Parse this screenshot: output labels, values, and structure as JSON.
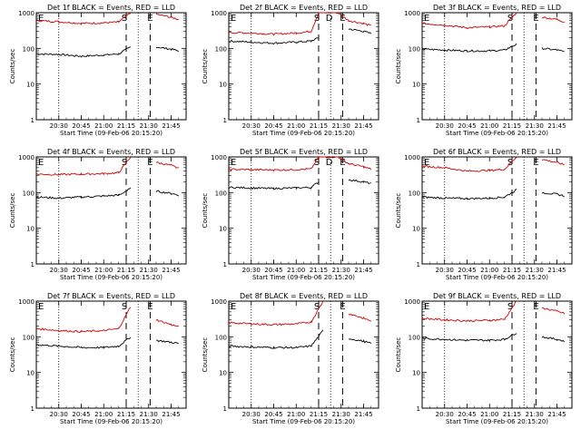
{
  "figure": {
    "xlabel": "Start Time (09-Feb-06 20:15:20)",
    "ylabel": "Counts/sec"
  },
  "chart_data": [
    {
      "type": "line",
      "title": "Det 1f BLACK = Events, RED = LLD",
      "xlabel": "Start Time (09-Feb-06 20:15:20)",
      "ylabel": "Counts/sec",
      "yscale": "log",
      "ylim": [
        1,
        1000
      ],
      "xlim": [
        "20:15",
        "21:55"
      ],
      "x_ticks": [
        "20:30",
        "20:45",
        "21:00",
        "21:15",
        "21:30",
        "21:45"
      ],
      "y_ticks": [
        "1",
        "10",
        "100",
        "1000"
      ],
      "markers": [
        "E",
        "S",
        "E"
      ],
      "series": [
        {
          "name": "Events",
          "color": "#000000",
          "x": [
            "20:15",
            "20:30",
            "20:45",
            "21:00",
            "21:10",
            "21:18",
            "21:30",
            "21:35",
            "21:45",
            "21:50"
          ],
          "y": [
            70,
            68,
            60,
            65,
            70,
            110,
            null,
            110,
            95,
            85
          ]
        },
        {
          "name": "LLD",
          "color": "#cc0000",
          "x": [
            "20:15",
            "20:30",
            "20:45",
            "21:00",
            "21:10",
            "21:18",
            "21:30",
            "21:35",
            "21:45",
            "21:50"
          ],
          "y": [
            600,
            560,
            500,
            520,
            550,
            1000,
            null,
            900,
            750,
            650
          ]
        }
      ]
    },
    {
      "type": "line",
      "title": "Det 2f BLACK = Events, RED = LLD",
      "xlabel": "Start Time (09-Feb-06 20:15:20)",
      "ylabel": "Counts/sec",
      "yscale": "log",
      "ylim": [
        1,
        1000
      ],
      "xlim": [
        "20:15",
        "21:55"
      ],
      "x_ticks": [
        "20:30",
        "20:45",
        "21:00",
        "21:15",
        "21:30",
        "21:45"
      ],
      "y_ticks": [
        "1",
        "10",
        "100",
        "1000"
      ],
      "markers": [
        "E",
        "S",
        "D",
        "E"
      ],
      "series": [
        {
          "name": "Events",
          "color": "#000000",
          "x": [
            "20:15",
            "20:30",
            "20:45",
            "21:00",
            "21:10",
            "21:15",
            "21:20",
            "21:28",
            "21:35",
            "21:45",
            "21:50"
          ],
          "y": [
            160,
            150,
            140,
            150,
            160,
            200,
            null,
            null,
            350,
            300,
            260
          ]
        },
        {
          "name": "LLD",
          "color": "#cc0000",
          "x": [
            "20:15",
            "20:30",
            "20:45",
            "21:00",
            "21:10",
            "21:15",
            "21:20",
            "21:28",
            "21:35",
            "21:45",
            "21:50"
          ],
          "y": [
            280,
            270,
            250,
            270,
            300,
            1000,
            1000,
            1000,
            600,
            500,
            430
          ]
        }
      ]
    },
    {
      "type": "line",
      "title": "Det 3f BLACK = Events, RED = LLD",
      "xlabel": "Start Time (09-Feb-06 20:15:20)",
      "ylabel": "Counts/sec",
      "yscale": "log",
      "ylim": [
        1,
        1000
      ],
      "xlim": [
        "20:15",
        "21:55"
      ],
      "x_ticks": [
        "20:30",
        "20:45",
        "21:00",
        "21:15",
        "21:30",
        "21:45"
      ],
      "y_ticks": [
        "1",
        "10",
        "100",
        "1000"
      ],
      "markers": [
        "E",
        "S",
        "E"
      ],
      "series": [
        {
          "name": "Events",
          "color": "#000000",
          "x": [
            "20:15",
            "20:30",
            "20:45",
            "21:00",
            "21:10",
            "21:18",
            "21:30",
            "21:35",
            "21:45",
            "21:50"
          ],
          "y": [
            95,
            90,
            85,
            85,
            90,
            130,
            null,
            100,
            90,
            80
          ]
        },
        {
          "name": "LLD",
          "color": "#cc0000",
          "x": [
            "20:15",
            "20:30",
            "20:45",
            "21:00",
            "21:10",
            "21:18",
            "21:30",
            "21:35",
            "21:45",
            "21:50"
          ],
          "y": [
            500,
            450,
            380,
            400,
            430,
            1000,
            null,
            750,
            650,
            550
          ]
        }
      ]
    },
    {
      "type": "line",
      "title": "Det 4f BLACK = Events, RED = LLD",
      "xlabel": "Start Time (09-Feb-06 20:15:20)",
      "ylabel": "Counts/sec",
      "yscale": "log",
      "ylim": [
        1,
        1000
      ],
      "xlim": [
        "20:15",
        "21:55"
      ],
      "x_ticks": [
        "20:30",
        "20:45",
        "21:00",
        "21:15",
        "21:30",
        "21:45"
      ],
      "y_ticks": [
        "1",
        "10",
        "100",
        "1000"
      ],
      "markers": [
        "E",
        "S",
        "E"
      ],
      "series": [
        {
          "name": "Events",
          "color": "#000000",
          "x": [
            "20:15",
            "20:30",
            "20:45",
            "21:00",
            "21:10",
            "21:18",
            "21:30",
            "21:35",
            "21:45",
            "21:50"
          ],
          "y": [
            75,
            70,
            75,
            80,
            85,
            130,
            null,
            110,
            95,
            85
          ]
        },
        {
          "name": "LLD",
          "color": "#cc0000",
          "x": [
            "20:15",
            "20:30",
            "20:45",
            "21:00",
            "21:10",
            "21:18",
            "21:30",
            "21:35",
            "21:45",
            "21:50"
          ],
          "y": [
            330,
            320,
            330,
            340,
            360,
            1000,
            null,
            700,
            580,
            480
          ]
        }
      ]
    },
    {
      "type": "line",
      "title": "Det 5f BLACK = Events, RED = LLD",
      "xlabel": "Start Time (09-Feb-06 20:15:20)",
      "ylabel": "Counts/sec",
      "yscale": "log",
      "ylim": [
        1,
        1000
      ],
      "xlim": [
        "20:15",
        "21:55"
      ],
      "x_ticks": [
        "20:30",
        "20:45",
        "21:00",
        "21:15",
        "21:30",
        "21:45"
      ],
      "y_ticks": [
        "1",
        "10",
        "100",
        "1000"
      ],
      "markers": [
        "E",
        "S",
        "D",
        "E"
      ],
      "series": [
        {
          "name": "Events",
          "color": "#000000",
          "x": [
            "20:15",
            "20:30",
            "20:45",
            "21:00",
            "21:10",
            "21:15",
            "21:20",
            "21:28",
            "21:35",
            "21:45",
            "21:50"
          ],
          "y": [
            140,
            135,
            130,
            135,
            140,
            200,
            null,
            null,
            230,
            200,
            180
          ]
        },
        {
          "name": "LLD",
          "color": "#cc0000",
          "x": [
            "20:15",
            "20:30",
            "20:45",
            "21:00",
            "21:10",
            "21:15",
            "21:20",
            "21:28",
            "21:35",
            "21:45",
            "21:50"
          ],
          "y": [
            450,
            440,
            430,
            440,
            460,
            1000,
            1000,
            1000,
            650,
            530,
            450
          ]
        }
      ]
    },
    {
      "type": "line",
      "title": "Det 6f BLACK = Events, RED = LLD",
      "xlabel": "Start Time (09-Feb-06 20:15:20)",
      "ylabel": "Counts/sec",
      "yscale": "log",
      "ylim": [
        1,
        1000
      ],
      "xlim": [
        "20:15",
        "21:55"
      ],
      "x_ticks": [
        "20:30",
        "20:45",
        "21:00",
        "21:15",
        "21:30",
        "21:45"
      ],
      "y_ticks": [
        "1",
        "10",
        "100",
        "1000"
      ],
      "markers": [
        "E",
        "S",
        "E"
      ],
      "series": [
        {
          "name": "Events",
          "color": "#000000",
          "x": [
            "20:15",
            "20:30",
            "20:45",
            "21:00",
            "21:10",
            "21:18",
            "21:30",
            "21:35",
            "21:45",
            "21:50"
          ],
          "y": [
            75,
            70,
            68,
            70,
            75,
            120,
            null,
            100,
            90,
            80
          ]
        },
        {
          "name": "LLD",
          "color": "#cc0000",
          "x": [
            "20:15",
            "20:30",
            "20:45",
            "21:00",
            "21:10",
            "21:18",
            "21:30",
            "21:35",
            "21:45",
            "21:50"
          ],
          "y": [
            550,
            500,
            400,
            420,
            450,
            1000,
            null,
            850,
            700,
            600
          ]
        }
      ]
    },
    {
      "type": "line",
      "title": "Det 7f BLACK = Events, RED = LLD",
      "xlabel": "Start Time (09-Feb-06 20:15:20)",
      "ylabel": "Counts/sec",
      "yscale": "log",
      "ylim": [
        1,
        1000
      ],
      "xlim": [
        "20:15",
        "21:55"
      ],
      "x_ticks": [
        "20:30",
        "20:45",
        "21:00",
        "21:15",
        "21:30",
        "21:45"
      ],
      "y_ticks": [
        "1",
        "10",
        "100",
        "1000"
      ],
      "markers": [
        "E",
        "S",
        "E"
      ],
      "series": [
        {
          "name": "Events",
          "color": "#000000",
          "x": [
            "20:15",
            "20:30",
            "20:45",
            "21:00",
            "21:10",
            "21:18",
            "21:30",
            "21:35",
            "21:45",
            "21:50"
          ],
          "y": [
            60,
            55,
            50,
            50,
            55,
            100,
            null,
            80,
            70,
            65
          ]
        },
        {
          "name": "LLD",
          "color": "#cc0000",
          "x": [
            "20:15",
            "20:30",
            "20:45",
            "21:00",
            "21:10",
            "21:18",
            "21:30",
            "21:35",
            "21:45",
            "21:50"
          ],
          "y": [
            170,
            150,
            140,
            150,
            170,
            700,
            null,
            300,
            220,
            190
          ]
        }
      ]
    },
    {
      "type": "line",
      "title": "Det 8f BLACK = Events, RED = LLD",
      "xlabel": "Start Time (09-Feb-06 20:15:20)",
      "ylabel": "Counts/sec",
      "yscale": "log",
      "ylim": [
        1,
        1000
      ],
      "xlim": [
        "20:15",
        "21:55"
      ],
      "x_ticks": [
        "20:30",
        "20:45",
        "21:00",
        "21:15",
        "21:30",
        "21:45"
      ],
      "y_ticks": [
        "1",
        "10",
        "100",
        "1000"
      ],
      "markers": [
        "E",
        "S",
        "E"
      ],
      "series": [
        {
          "name": "Events",
          "color": "#000000",
          "x": [
            "20:15",
            "20:30",
            "20:45",
            "21:00",
            "21:10",
            "21:18",
            "21:30",
            "21:35",
            "21:45",
            "21:50"
          ],
          "y": [
            55,
            52,
            50,
            50,
            55,
            150,
            null,
            90,
            75,
            65
          ]
        },
        {
          "name": "LLD",
          "color": "#cc0000",
          "x": [
            "20:15",
            "20:30",
            "20:45",
            "21:00",
            "21:10",
            "21:18",
            "21:30",
            "21:35",
            "21:45",
            "21:50"
          ],
          "y": [
            250,
            230,
            220,
            230,
            260,
            1000,
            null,
            450,
            330,
            280
          ]
        }
      ]
    },
    {
      "type": "line",
      "title": "Det 9f BLACK = Events, RED = LLD",
      "xlabel": "Start Time (09-Feb-06 20:15:20)",
      "ylabel": "Counts/sec",
      "yscale": "log",
      "ylim": [
        1,
        1000
      ],
      "xlim": [
        "20:15",
        "21:55"
      ],
      "x_ticks": [
        "20:30",
        "20:45",
        "21:00",
        "21:15",
        "21:30",
        "21:45"
      ],
      "y_ticks": [
        "1",
        "10",
        "100",
        "1000"
      ],
      "markers": [
        "E",
        "S",
        "E"
      ],
      "series": [
        {
          "name": "Events",
          "color": "#000000",
          "x": [
            "20:15",
            "20:30",
            "20:45",
            "21:00",
            "21:10",
            "21:18",
            "21:30",
            "21:35",
            "21:45",
            "21:50"
          ],
          "y": [
            90,
            85,
            80,
            80,
            85,
            130,
            null,
            100,
            85,
            75
          ]
        },
        {
          "name": "LLD",
          "color": "#cc0000",
          "x": [
            "20:15",
            "20:30",
            "20:45",
            "21:00",
            "21:10",
            "21:18",
            "21:30",
            "21:35",
            "21:45",
            "21:50"
          ],
          "y": [
            330,
            300,
            280,
            290,
            310,
            1000,
            null,
            650,
            520,
            450
          ]
        }
      ]
    }
  ]
}
